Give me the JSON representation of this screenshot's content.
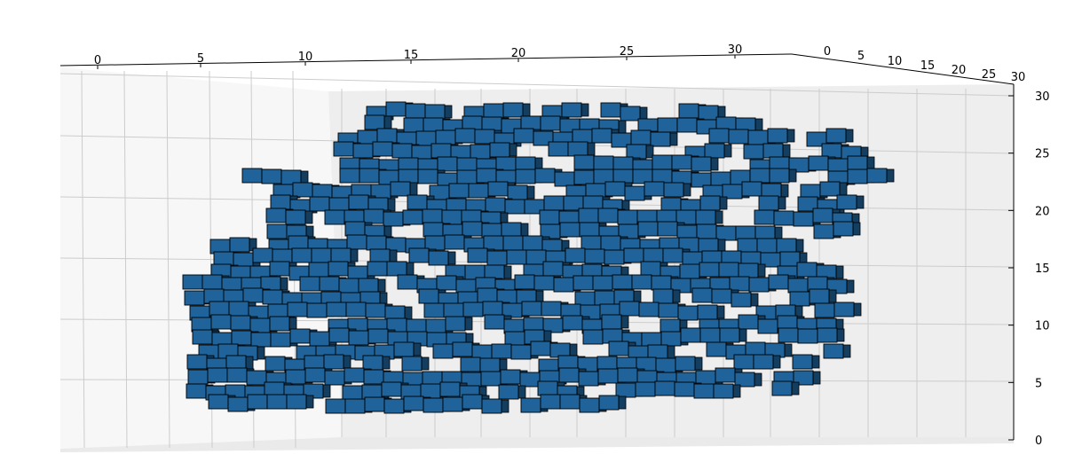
{
  "chart_data": {
    "type": "voxel-3d",
    "title": "",
    "face_color": "#1f639a",
    "edge_color": "#000000",
    "pane_color": "#f2f2f2",
    "grid_color": "#cccccc",
    "axes": {
      "x": {
        "range": [
          0,
          32
        ],
        "ticks": [
          "0",
          "5",
          "10",
          "15",
          "20",
          "25",
          "30"
        ]
      },
      "y": {
        "range": [
          0,
          32
        ],
        "ticks": [
          "0",
          "5",
          "10",
          "15",
          "20",
          "25",
          "30"
        ]
      },
      "z": {
        "range": [
          0,
          30
        ],
        "ticks": [
          "0",
          "5",
          "10",
          "15",
          "20",
          "25",
          "30"
        ]
      }
    },
    "voxel_summary": "porous network of unit voxels filling roughly x 1-29, z 0-28"
  }
}
